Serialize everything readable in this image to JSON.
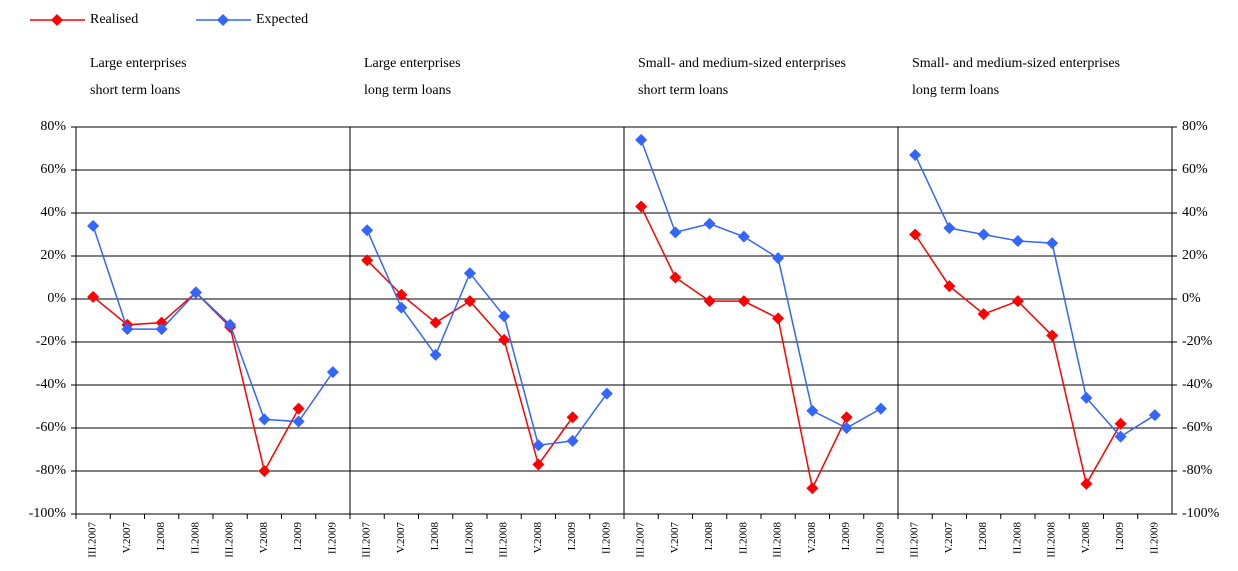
{
  "chart_data": {
    "type": "line",
    "categories": [
      "III.2007",
      "V.2007",
      "I.2008",
      "II.2008",
      "III.2008",
      "V.2008",
      "I.2009",
      "II.2009"
    ],
    "ylim": [
      -100,
      80
    ],
    "yticks": [
      {
        "value": -100,
        "label": "-100%"
      },
      {
        "value": -80,
        "label": "-80%"
      },
      {
        "value": -60,
        "label": "-60%"
      },
      {
        "value": -40,
        "label": "-40%"
      },
      {
        "value": -20,
        "label": "-20%"
      },
      {
        "value": 0,
        "label": "0%"
      },
      {
        "value": 20,
        "label": "20%"
      },
      {
        "value": 40,
        "label": "40%"
      },
      {
        "value": 60,
        "label": "60%"
      },
      {
        "value": 80,
        "label": "80%"
      }
    ],
    "grid": true,
    "series": [
      {
        "name": "Realised",
        "color": "#ff0000"
      },
      {
        "name": "Expected",
        "color": "#3366ff"
      }
    ],
    "panels": [
      {
        "title": [
          "Large enterprises",
          "short term loans"
        ],
        "series": [
          {
            "values": [
              1,
              -12,
              -11,
              3,
              -13,
              -80,
              -51,
              null
            ]
          },
          {
            "values": [
              34,
              -14,
              -14,
              3,
              -12,
              -56,
              -57,
              -34
            ]
          }
        ]
      },
      {
        "title": [
          "Large enterprises",
          "long term loans"
        ],
        "series": [
          {
            "values": [
              18,
              2,
              -11,
              -1,
              -19,
              -77,
              -55,
              null
            ]
          },
          {
            "values": [
              32,
              -4,
              -26,
              12,
              -8,
              -68,
              -66,
              -44
            ]
          }
        ]
      },
      {
        "title": [
          "Small- and medium-sized enterprises",
          "short term loans"
        ],
        "series": [
          {
            "values": [
              43,
              10,
              -1,
              -1,
              -9,
              -88,
              -55,
              null
            ]
          },
          {
            "values": [
              74,
              31,
              35,
              29,
              19,
              -52,
              -60,
              -51
            ]
          }
        ]
      },
      {
        "title": [
          "Small- and medium-sized enterprises",
          "long  term loans"
        ],
        "series": [
          {
            "values": [
              30,
              6,
              -7,
              -1,
              -17,
              -86,
              -58,
              null
            ]
          },
          {
            "values": [
              67,
              33,
              30,
              27,
              26,
              -46,
              -64,
              -54
            ]
          }
        ]
      }
    ]
  }
}
